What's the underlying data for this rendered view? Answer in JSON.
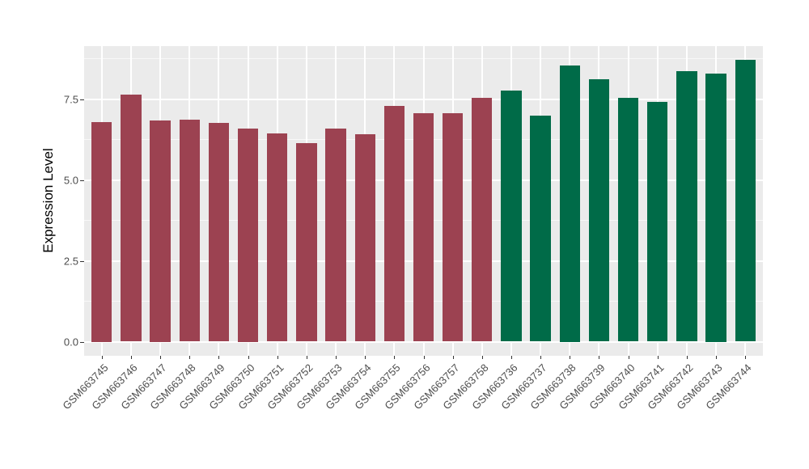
{
  "chart_data": {
    "type": "bar",
    "title": "",
    "xlabel": "",
    "ylabel": "Expression Level",
    "ylim": [
      -0.44,
      9.14
    ],
    "yticks": [
      0.0,
      2.5,
      5.0,
      7.5
    ],
    "ytick_labels": [
      "0.0",
      "2.5",
      "5.0",
      "7.5"
    ],
    "yticks_minor": [
      1.25,
      3.75,
      6.25,
      8.75
    ],
    "grid": "major and minor horizontal white lines, vertical white lines at category centers, on gray panel",
    "legend_position": "none",
    "panel_background": "#EBEBEB",
    "categories": [
      "GSM663745",
      "GSM663746",
      "GSM663747",
      "GSM663748",
      "GSM663749",
      "GSM663750",
      "GSM663751",
      "GSM663752",
      "GSM663753",
      "GSM663754",
      "GSM663755",
      "GSM663756",
      "GSM663757",
      "GSM663758",
      "GSM663736",
      "GSM663737",
      "GSM663738",
      "GSM663739",
      "GSM663740",
      "GSM663741",
      "GSM663742",
      "GSM663743",
      "GSM663744"
    ],
    "values": [
      6.8,
      7.64,
      6.85,
      6.87,
      6.77,
      6.6,
      6.43,
      6.14,
      6.59,
      6.41,
      7.29,
      7.07,
      7.07,
      7.54,
      7.77,
      6.98,
      8.55,
      8.12,
      7.54,
      7.41,
      8.36,
      8.3,
      8.72
    ],
    "groups": [
      "red",
      "red",
      "red",
      "red",
      "red",
      "red",
      "red",
      "red",
      "red",
      "red",
      "red",
      "red",
      "red",
      "red",
      "green",
      "green",
      "green",
      "green",
      "green",
      "green",
      "green",
      "green",
      "green"
    ],
    "group_colors": {
      "red": "#9C4251",
      "green": "#006B48"
    }
  }
}
